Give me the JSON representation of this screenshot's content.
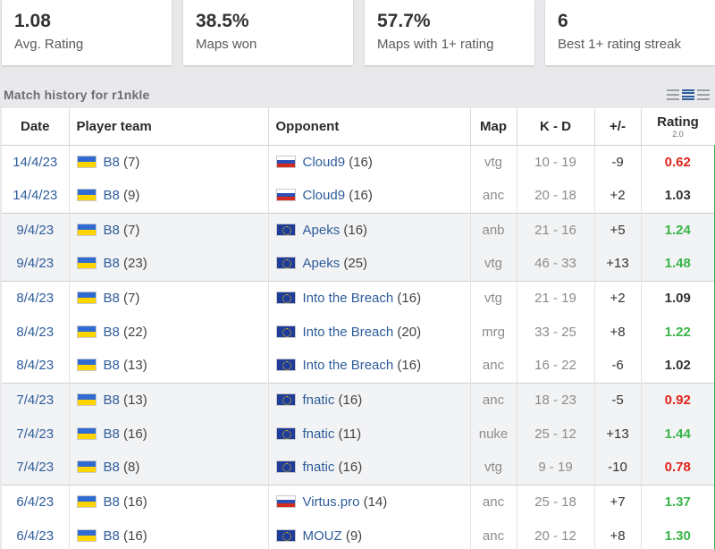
{
  "stats": [
    {
      "value": "1.08",
      "label": "Avg. Rating"
    },
    {
      "value": "38.5%",
      "label": "Maps won"
    },
    {
      "value": "57.7%",
      "label": "Maps with 1+ rating"
    },
    {
      "value": "6",
      "label": "Best 1+ rating streak"
    }
  ],
  "history": {
    "title": "Match history for r1nkle",
    "view_icons": [
      "list-compact-icon",
      "list-normal-icon",
      "list-wide-icon"
    ],
    "columns": {
      "date": "Date",
      "player_team": "Player team",
      "opponent": "Opponent",
      "map": "Map",
      "kd": "K - D",
      "diff": "+/-",
      "rating": "Rating",
      "rating_sub": "2.0"
    },
    "rows": [
      {
        "date": "14/4/23",
        "team": "B8",
        "team_score": "(7)",
        "team_flag": "ukraine-flag-icon",
        "opponent": "Cloud9",
        "opp_score": "(16)",
        "opp_flag": "russia-flag-icon",
        "map": "vtg",
        "kd": "10 - 19",
        "diff": "-9",
        "rating": "0.62"
      },
      {
        "date": "14/4/23",
        "team": "B8",
        "team_score": "(9)",
        "team_flag": "ukraine-flag-icon",
        "opponent": "Cloud9",
        "opp_score": "(16)",
        "opp_flag": "russia-flag-icon",
        "map": "anc",
        "kd": "20 - 18",
        "diff": "+2",
        "rating": "1.03"
      },
      {
        "date": "9/4/23",
        "team": "B8",
        "team_score": "(7)",
        "team_flag": "ukraine-flag-icon",
        "opponent": "Apeks",
        "opp_score": "(16)",
        "opp_flag": "eu-flag-icon",
        "map": "anb",
        "kd": "21 - 16",
        "diff": "+5",
        "rating": "1.24"
      },
      {
        "date": "9/4/23",
        "team": "B8",
        "team_score": "(23)",
        "team_flag": "ukraine-flag-icon",
        "opponent": "Apeks",
        "opp_score": "(25)",
        "opp_flag": "eu-flag-icon",
        "map": "vtg",
        "kd": "46 - 33",
        "diff": "+13",
        "rating": "1.48"
      },
      {
        "date": "8/4/23",
        "team": "B8",
        "team_score": "(7)",
        "team_flag": "ukraine-flag-icon",
        "opponent": "Into the Breach",
        "opp_score": "(16)",
        "opp_flag": "eu-flag-icon",
        "map": "vtg",
        "kd": "21 - 19",
        "diff": "+2",
        "rating": "1.09"
      },
      {
        "date": "8/4/23",
        "team": "B8",
        "team_score": "(22)",
        "team_flag": "ukraine-flag-icon",
        "opponent": "Into the Breach",
        "opp_score": "(20)",
        "opp_flag": "eu-flag-icon",
        "map": "mrg",
        "kd": "33 - 25",
        "diff": "+8",
        "rating": "1.22"
      },
      {
        "date": "8/4/23",
        "team": "B8",
        "team_score": "(13)",
        "team_flag": "ukraine-flag-icon",
        "opponent": "Into the Breach",
        "opp_score": "(16)",
        "opp_flag": "eu-flag-icon",
        "map": "anc",
        "kd": "16 - 22",
        "diff": "-6",
        "rating": "1.02"
      },
      {
        "date": "7/4/23",
        "team": "B8",
        "team_score": "(13)",
        "team_flag": "ukraine-flag-icon",
        "opponent": "fnatic",
        "opp_score": "(16)",
        "opp_flag": "eu-flag-icon",
        "map": "anc",
        "kd": "18 - 23",
        "diff": "-5",
        "rating": "0.92"
      },
      {
        "date": "7/4/23",
        "team": "B8",
        "team_score": "(16)",
        "team_flag": "ukraine-flag-icon",
        "opponent": "fnatic",
        "opp_score": "(11)",
        "opp_flag": "eu-flag-icon",
        "map": "nuke",
        "kd": "25 - 12",
        "diff": "+13",
        "rating": "1.44"
      },
      {
        "date": "7/4/23",
        "team": "B8",
        "team_score": "(8)",
        "team_flag": "ukraine-flag-icon",
        "opponent": "fnatic",
        "opp_score": "(16)",
        "opp_flag": "eu-flag-icon",
        "map": "vtg",
        "kd": "9 - 19",
        "diff": "-10",
        "rating": "0.78"
      },
      {
        "date": "6/4/23",
        "team": "B8",
        "team_score": "(16)",
        "team_flag": "ukraine-flag-icon",
        "opponent": "Virtus.pro",
        "opp_score": "(14)",
        "opp_flag": "russia-flag-icon",
        "map": "anc",
        "kd": "25 - 18",
        "diff": "+7",
        "rating": "1.37"
      },
      {
        "date": "6/4/23",
        "team": "B8",
        "team_score": "(16)",
        "team_flag": "ukraine-flag-icon",
        "opponent": "MOUZ",
        "opp_score": "(9)",
        "opp_flag": "eu-flag-icon",
        "map": "anc",
        "kd": "20 - 12",
        "diff": "+8",
        "rating": "1.30"
      }
    ]
  },
  "colors": {
    "link": "#2e5d9a",
    "positive": "#39b54a",
    "negative": "#e0251b"
  }
}
